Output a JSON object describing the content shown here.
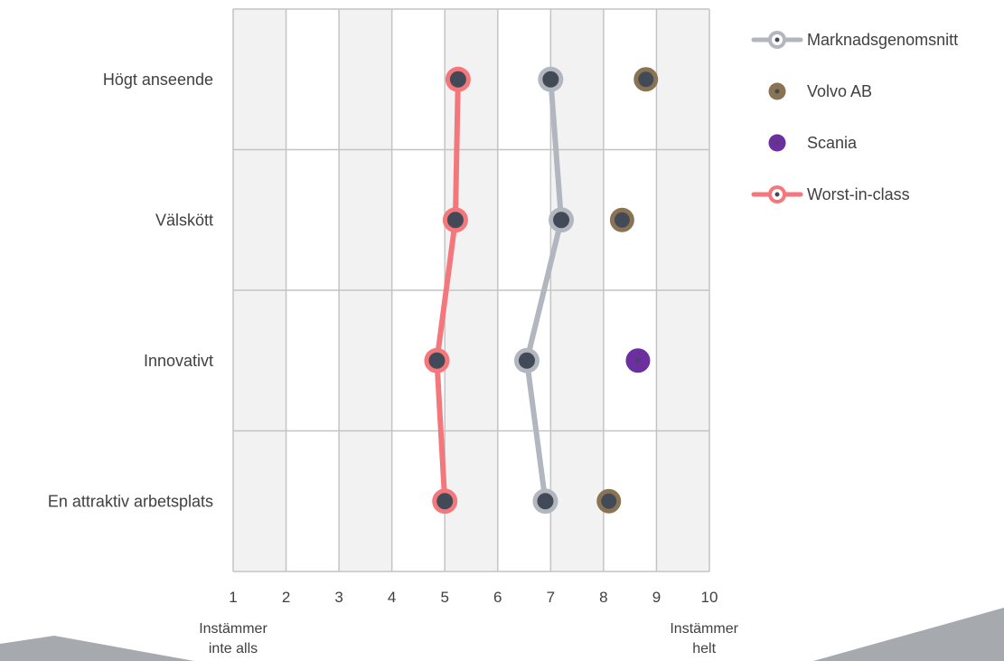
{
  "chart_data": {
    "type": "scatter",
    "title": "",
    "xlabel": "",
    "ylabel": "",
    "xlim": [
      1,
      10
    ],
    "x_ticks": [
      "1",
      "2",
      "3",
      "4",
      "5",
      "6",
      "7",
      "8",
      "9",
      "10"
    ],
    "categories": [
      "Högt anseende",
      "Välskött",
      "Innovativt",
      "En attraktiv arbetsplats"
    ],
    "anchor_labels": {
      "left": [
        "Instämmer",
        "inte alls"
      ],
      "right": [
        "Instämmer",
        "helt"
      ]
    },
    "grid": true,
    "legend_position": "top-right",
    "series": [
      {
        "name": "Marknadsgenomsnitt",
        "style": "line",
        "color": "#b2b6be",
        "values": [
          7.0,
          7.2,
          6.55,
          6.9
        ]
      },
      {
        "name": "Volvo AB",
        "style": "points",
        "color": "#8a7352",
        "values": [
          8.8,
          8.35,
          null,
          8.1
        ]
      },
      {
        "name": "Scania",
        "style": "points",
        "color": "#6b2fa0",
        "values": [
          null,
          null,
          8.65,
          null
        ]
      },
      {
        "name": "Worst-in-class",
        "style": "line",
        "color": "#f4777c",
        "values": [
          5.25,
          5.2,
          4.85,
          5.0
        ]
      }
    ],
    "colors": {
      "marker_center": "#434a57",
      "grid": "#c4c4c4",
      "band_shaded": "#f2f2f2",
      "band_plain": "#ffffff",
      "corner_shape": "#a6a9ae"
    }
  }
}
